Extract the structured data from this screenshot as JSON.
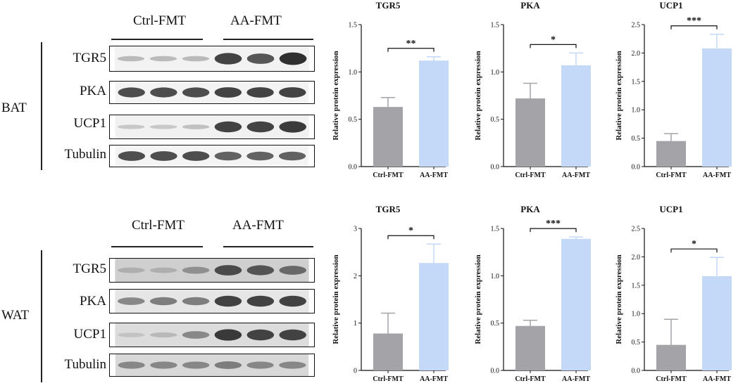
{
  "sections": [
    {
      "label": "BAT",
      "group_left": "Ctrl-FMT",
      "group_right": "AA-FMT",
      "rows": [
        "TGR5",
        "PKA",
        "UCP1",
        "Tubulin"
      ],
      "blots": [
        {
          "name": "TGR5",
          "bands": [
            0.25,
            0.25,
            0.25,
            0.85,
            0.75,
            0.95
          ],
          "bg": "#f2f2f2"
        },
        {
          "name": "PKA",
          "bands": [
            0.8,
            0.8,
            0.8,
            0.85,
            0.85,
            0.85
          ],
          "bg": "#f3f3f3"
        },
        {
          "name": "UCP1",
          "bands": [
            0.18,
            0.18,
            0.22,
            0.85,
            0.85,
            0.9
          ],
          "bg": "#f1f1f1"
        },
        {
          "name": "Tubulin",
          "bands": [
            0.8,
            0.8,
            0.8,
            0.7,
            0.7,
            0.7
          ],
          "bg": "#f4f4f4"
        }
      ]
    },
    {
      "label": "WAT",
      "group_left": "Ctrl-FMT",
      "group_right": "AA-FMT",
      "rows": [
        "TGR5",
        "PKA",
        "UCP1",
        "Tubulin"
      ],
      "blots": [
        {
          "name": "TGR5",
          "bands": [
            0.3,
            0.3,
            0.45,
            0.8,
            0.75,
            0.65
          ],
          "bg": "#cfcfcf"
        },
        {
          "name": "PKA",
          "bands": [
            0.5,
            0.55,
            0.55,
            0.85,
            0.85,
            0.85
          ],
          "bg": "#e6e6e6"
        },
        {
          "name": "UCP1",
          "bands": [
            0.2,
            0.25,
            0.5,
            0.9,
            0.85,
            0.85
          ],
          "bg": "#dcdcdc"
        },
        {
          "name": "Tubulin",
          "bands": [
            0.5,
            0.5,
            0.5,
            0.55,
            0.5,
            0.5
          ],
          "bg": "#d8d8d8"
        }
      ]
    }
  ],
  "chart_data": [
    {
      "type": "bar",
      "title": "TGR5",
      "ylabel": "Relative protein expression",
      "categories": [
        "Ctrl-FMT",
        "AA-FMT"
      ],
      "values": [
        0.63,
        1.12
      ],
      "errors": [
        0.1,
        0.04
      ],
      "ylim": [
        0,
        1.5
      ],
      "yticks": [
        "0.0",
        "0.5",
        "1.0",
        "1.5"
      ],
      "significance": "**",
      "colors": [
        "#a3a3a8",
        "#c3d9f7"
      ]
    },
    {
      "type": "bar",
      "title": "PKA",
      "ylabel": "Relative protein expression",
      "categories": [
        "Ctrl-FMT",
        "AA-FMT"
      ],
      "values": [
        0.72,
        1.07
      ],
      "errors": [
        0.16,
        0.13
      ],
      "ylim": [
        0,
        1.5
      ],
      "yticks": [
        "0.0",
        "0.5",
        "1.0",
        "1.5"
      ],
      "significance": "*",
      "colors": [
        "#a3a3a8",
        "#c3d9f7"
      ]
    },
    {
      "type": "bar",
      "title": "UCP1",
      "ylabel": "Relative protein expression",
      "categories": [
        "Ctrl-FMT",
        "AA-FMT"
      ],
      "values": [
        0.45,
        2.08
      ],
      "errors": [
        0.13,
        0.25
      ],
      "ylim": [
        0,
        2.5
      ],
      "yticks": [
        "0.0",
        "0.5",
        "1.0",
        "1.5",
        "2.0",
        "2.5"
      ],
      "significance": "***",
      "colors": [
        "#a3a3a8",
        "#c3d9f7"
      ]
    },
    {
      "type": "bar",
      "title": "TGR5",
      "ylabel": "Relative protein expression",
      "categories": [
        "Ctrl-FMT",
        "AA-FMT"
      ],
      "values": [
        0.78,
        2.27
      ],
      "errors": [
        0.43,
        0.4
      ],
      "ylim": [
        0,
        3
      ],
      "yticks": [
        "0",
        "1",
        "2",
        "3"
      ],
      "significance": "*",
      "colors": [
        "#a3a3a8",
        "#c3d9f7"
      ]
    },
    {
      "type": "bar",
      "title": "PKA",
      "ylabel": "Relative protein expression",
      "categories": [
        "Ctrl-FMT",
        "AA-FMT"
      ],
      "values": [
        0.47,
        1.39
      ],
      "errors": [
        0.06,
        0.02
      ],
      "ylim": [
        0,
        1.5
      ],
      "yticks": [
        "0.0",
        "0.5",
        "1.0",
        "1.5"
      ],
      "significance": "***",
      "colors": [
        "#a3a3a8",
        "#c3d9f7"
      ]
    },
    {
      "type": "bar",
      "title": "UCP1",
      "ylabel": "Relative protein expression",
      "categories": [
        "Ctrl-FMT",
        "AA-FMT"
      ],
      "values": [
        0.45,
        1.66
      ],
      "errors": [
        0.45,
        0.33
      ],
      "ylim": [
        0,
        2.5
      ],
      "yticks": [
        "0.0",
        "0.5",
        "1.0",
        "1.5",
        "2.0",
        "2.5"
      ],
      "significance": "*",
      "colors": [
        "#a3a3a8",
        "#c3d9f7"
      ]
    }
  ]
}
